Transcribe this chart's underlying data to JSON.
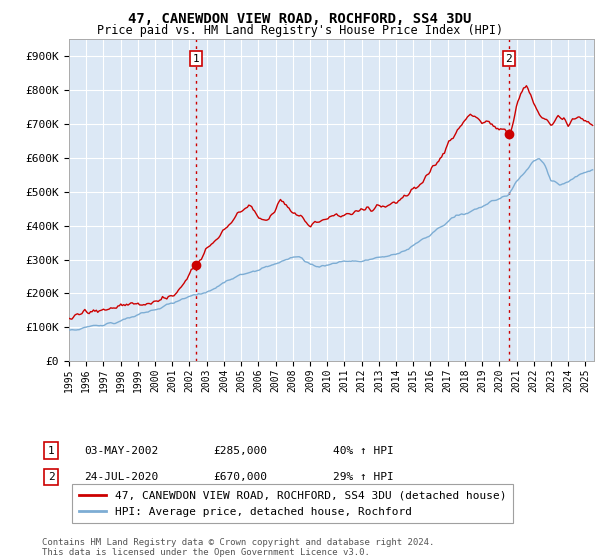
{
  "title": "47, CANEWDON VIEW ROAD, ROCHFORD, SS4 3DU",
  "subtitle": "Price paid vs. HM Land Registry's House Price Index (HPI)",
  "ylabel_ticks": [
    "£0",
    "£100K",
    "£200K",
    "£300K",
    "£400K",
    "£500K",
    "£600K",
    "£700K",
    "£800K",
    "£900K"
  ],
  "ytick_values": [
    0,
    100000,
    200000,
    300000,
    400000,
    500000,
    600000,
    700000,
    800000,
    900000
  ],
  "ylim": [
    0,
    950000
  ],
  "legend_line1": "47, CANEWDON VIEW ROAD, ROCHFORD, SS4 3DU (detached house)",
  "legend_line2": "HPI: Average price, detached house, Rochford",
  "annotation1_date": "03-MAY-2002",
  "annotation1_price": "£285,000",
  "annotation1_hpi": "40% ↑ HPI",
  "annotation2_date": "24-JUL-2020",
  "annotation2_price": "£670,000",
  "annotation2_hpi": "29% ↑ HPI",
  "footer": "Contains HM Land Registry data © Crown copyright and database right 2024.\nThis data is licensed under the Open Government Licence v3.0.",
  "line_color_red": "#cc0000",
  "line_color_blue": "#7dadd4",
  "vline_color": "#cc0000",
  "background_color": "#ffffff",
  "plot_bg_color": "#dce8f5",
  "grid_color": "#ffffff",
  "sale1_x": 2002.37,
  "sale1_y": 285000,
  "sale2_x": 2020.56,
  "sale2_y": 670000,
  "xlim_start": 1995.0,
  "xlim_end": 2025.5
}
